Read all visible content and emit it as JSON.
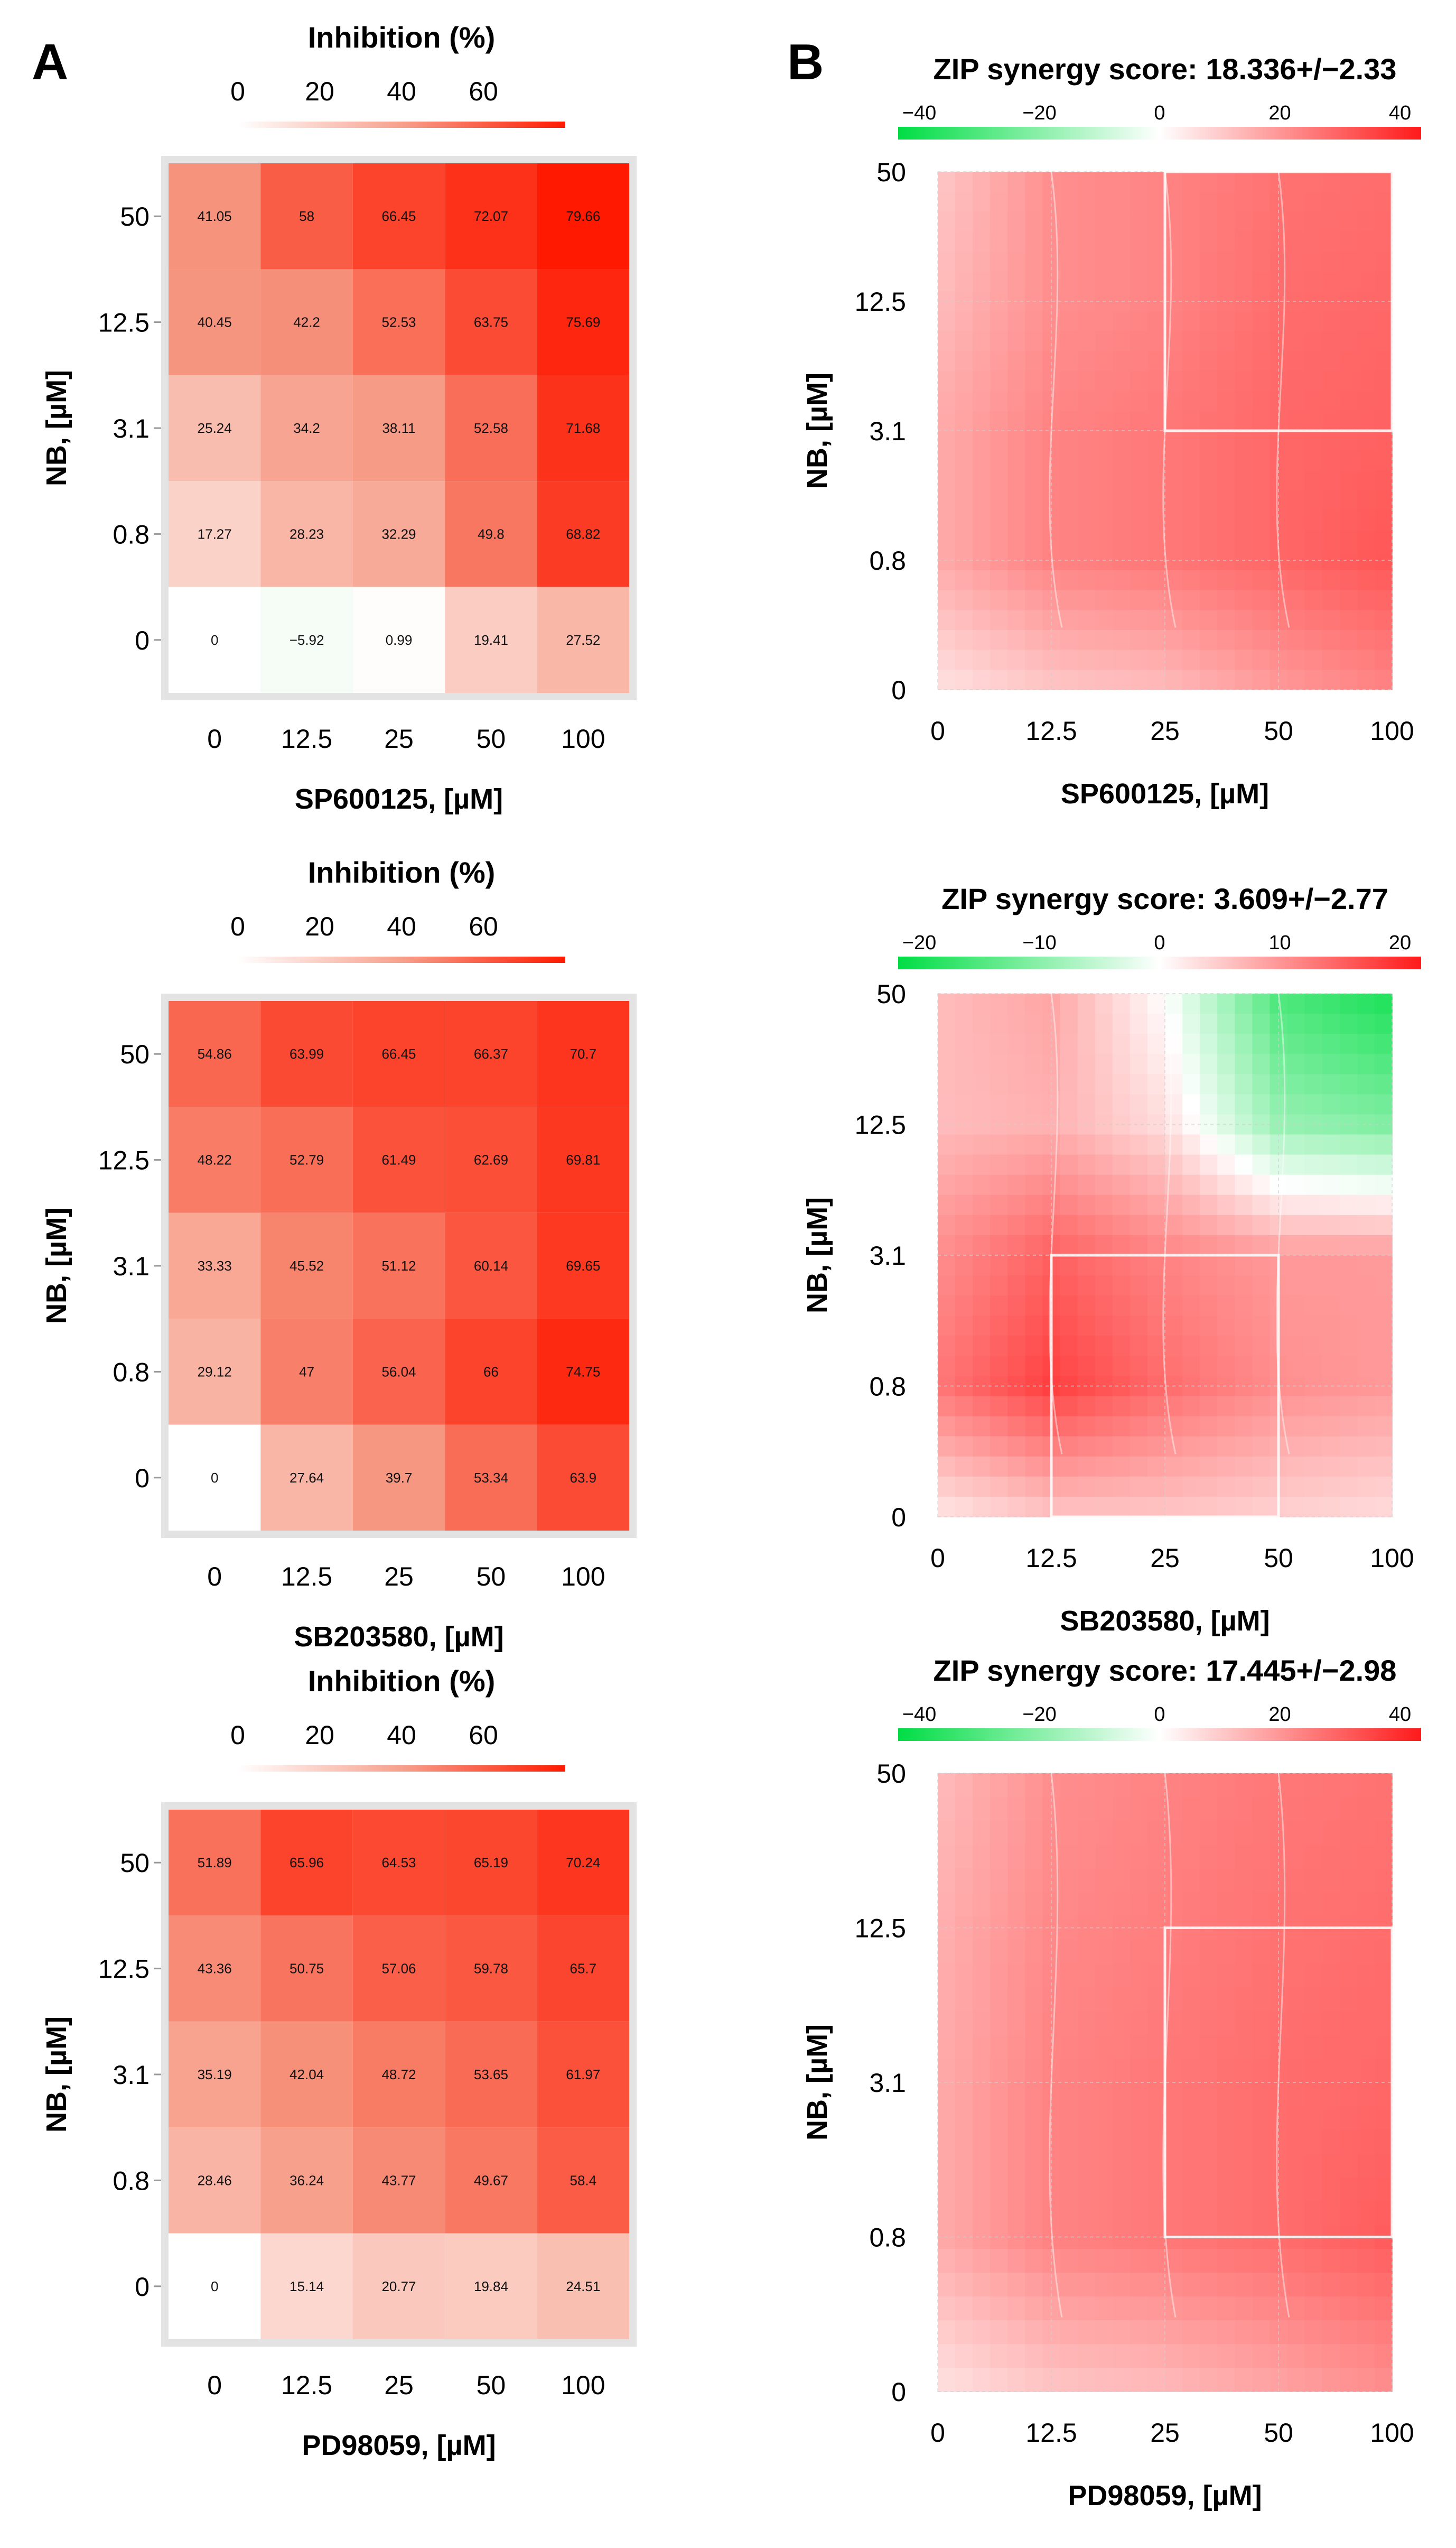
{
  "panels": {
    "left": "A",
    "right": "B"
  },
  "heatmap_colorbar": {
    "title": "Inhibition (%)",
    "ticks": [
      "0",
      "20",
      "40",
      "60"
    ]
  },
  "chart_data": [
    {
      "type": "heatmap",
      "id": "h1",
      "title": "Inhibition (%)",
      "xlabel": "SP600125, [µM]",
      "ylabel": "NB, [µM]",
      "x_ticks": [
        "0",
        "12.5",
        "25",
        "50",
        "100"
      ],
      "y_ticks": [
        "50",
        "12.5",
        "3.1",
        "0.8",
        "0"
      ],
      "values": [
        [
          "41.05",
          "58",
          "66.45",
          "72.07",
          "79.66"
        ],
        [
          "40.45",
          "42.2",
          "52.53",
          "63.75",
          "75.69"
        ],
        [
          "25.24",
          "34.2",
          "38.11",
          "52.58",
          "71.68"
        ],
        [
          "17.27",
          "28.23",
          "32.29",
          "49.8",
          "68.82"
        ],
        [
          "0",
          "−5.92",
          "0.99",
          "19.41",
          "27.52"
        ]
      ],
      "color_range": [
        0,
        80
      ]
    },
    {
      "type": "heatmap",
      "id": "h2",
      "title": "Inhibition (%)",
      "xlabel": "SB203580, [µM]",
      "ylabel": "NB, [µM]",
      "x_ticks": [
        "0",
        "12.5",
        "25",
        "50",
        "100"
      ],
      "y_ticks": [
        "50",
        "12.5",
        "3.1",
        "0.8",
        "0"
      ],
      "values": [
        [
          "54.86",
          "63.99",
          "66.45",
          "66.37",
          "70.7"
        ],
        [
          "48.22",
          "52.79",
          "61.49",
          "62.69",
          "69.81"
        ],
        [
          "33.33",
          "45.52",
          "51.12",
          "60.14",
          "69.65"
        ],
        [
          "29.12",
          "47",
          "56.04",
          "66",
          "74.75"
        ],
        [
          "0",
          "27.64",
          "39.7",
          "53.34",
          "63.9"
        ]
      ],
      "color_range": [
        0,
        80
      ]
    },
    {
      "type": "heatmap",
      "id": "h3",
      "title": "Inhibition (%)",
      "xlabel": "PD98059, [µM]",
      "ylabel": "NB, [µM]",
      "x_ticks": [
        "0",
        "12.5",
        "25",
        "50",
        "100"
      ],
      "y_ticks": [
        "50",
        "12.5",
        "3.1",
        "0.8",
        "0"
      ],
      "values": [
        [
          "51.89",
          "65.96",
          "64.53",
          "65.19",
          "70.24"
        ],
        [
          "43.36",
          "50.75",
          "57.06",
          "59.78",
          "65.7"
        ],
        [
          "35.19",
          "42.04",
          "48.72",
          "53.65",
          "61.97"
        ],
        [
          "28.46",
          "36.24",
          "43.77",
          "49.67",
          "58.4"
        ],
        [
          "0",
          "15.14",
          "20.77",
          "19.84",
          "24.51"
        ]
      ],
      "color_range": [
        0,
        80
      ]
    },
    {
      "type": "heatmap",
      "id": "s1",
      "title": "ZIP synergy score: 18.336+/−2.33",
      "xlabel": "SP600125, [µM]",
      "ylabel": "NB, [µM]",
      "x_ticks": [
        "0",
        "12.5",
        "25",
        "50",
        "100"
      ],
      "y_ticks": [
        "50",
        "12.5",
        "3.1",
        "0.8",
        "0"
      ],
      "colorbar_ticks": [
        "−40",
        "−20",
        "0",
        "20",
        "40"
      ],
      "color_range": [
        -40,
        40
      ],
      "highlight_box": {
        "x_from": "25",
        "x_to": "100",
        "y_from": "3.1",
        "y_to": "50"
      },
      "surface_rows_top_to_bottom": [
        [
          10,
          20,
          22,
          25,
          26
        ],
        [
          12,
          20,
          22,
          26,
          27
        ],
        [
          15,
          22,
          24,
          27,
          28
        ],
        [
          15,
          22,
          24,
          27,
          30
        ],
        [
          5,
          10,
          12,
          18,
          22
        ]
      ]
    },
    {
      "type": "heatmap",
      "id": "s2",
      "title": "ZIP synergy score: 3.609+/−2.77",
      "xlabel": "SB203580, [µM]",
      "ylabel": "NB, [µM]",
      "x_ticks": [
        "0",
        "12.5",
        "25",
        "50",
        "100"
      ],
      "y_ticks": [
        "50",
        "12.5",
        "3.1",
        "0.8",
        "0"
      ],
      "colorbar_ticks": [
        "−20",
        "−10",
        "0",
        "10",
        "20"
      ],
      "color_range": [
        -20,
        20
      ],
      "highlight_box": {
        "x_from": "12.5",
        "x_to": "50",
        "y_from": "0",
        "y_to": "3.1"
      },
      "surface_rows_top_to_bottom": [
        [
          6,
          8,
          0,
          -14,
          -18
        ],
        [
          6,
          7,
          3,
          -8,
          -10
        ],
        [
          10,
          14,
          11,
          9,
          9
        ],
        [
          12,
          17,
          13,
          10,
          9
        ],
        [
          2,
          5,
          5,
          4,
          3
        ]
      ]
    },
    {
      "type": "heatmap",
      "id": "s3",
      "title": "ZIP synergy score: 17.445+/−2.98",
      "xlabel": "PD98059, [µM]",
      "ylabel": "NB, [µM]",
      "x_ticks": [
        "0",
        "12.5",
        "25",
        "50",
        "100"
      ],
      "y_ticks": [
        "50",
        "12.5",
        "3.1",
        "0.8",
        "0"
      ],
      "colorbar_ticks": [
        "−40",
        "−20",
        "0",
        "20",
        "40"
      ],
      "color_range": [
        -40,
        40
      ],
      "highlight_box": {
        "x_from": "25",
        "x_to": "100",
        "y_from": "0.8",
        "y_to": "12.5"
      },
      "surface_rows_top_to_bottom": [
        [
          12,
          20,
          22,
          24,
          25
        ],
        [
          14,
          21,
          23,
          25,
          26
        ],
        [
          15,
          22,
          24,
          26,
          27
        ],
        [
          15,
          22,
          24,
          26,
          29
        ],
        [
          5,
          10,
          12,
          16,
          20
        ]
      ]
    }
  ]
}
